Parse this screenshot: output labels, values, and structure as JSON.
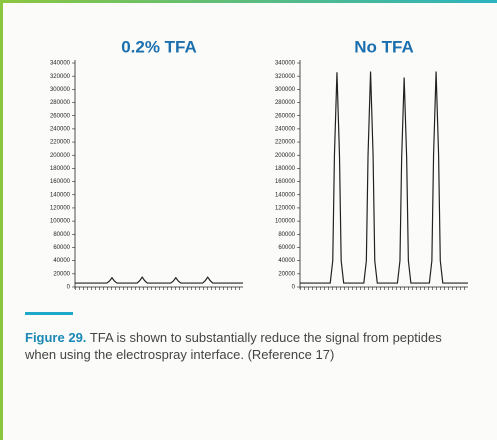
{
  "chart_data": [
    {
      "type": "line",
      "title": "0.2% TFA",
      "color": "#222222",
      "x": [
        0,
        19,
        20.5,
        22,
        23.5,
        25,
        37,
        38.5,
        40,
        41.5,
        43,
        57,
        58.5,
        60,
        61.5,
        63,
        76,
        77.5,
        79,
        80.5,
        82,
        100
      ],
      "values": [
        6000,
        6000,
        9000,
        14000,
        9000,
        6000,
        6000,
        9500,
        15000,
        9500,
        6000,
        6000,
        9000,
        14000,
        9000,
        6000,
        6000,
        9500,
        15000,
        9500,
        6000,
        6000
      ],
      "ylim": [
        0,
        340000
      ],
      "yticks": [
        0,
        20000,
        40000,
        60000,
        80000,
        100000,
        120000,
        140000,
        160000,
        180000,
        200000,
        220000,
        240000,
        260000,
        280000,
        300000,
        320000,
        340000
      ]
    },
    {
      "type": "line",
      "title": "No TFA",
      "color": "#222222",
      "x": [
        0,
        18,
        19.5,
        20.5,
        22,
        23.5,
        24.5,
        26,
        38,
        39.5,
        40.5,
        42,
        43.5,
        44.5,
        46,
        58,
        59.5,
        60.5,
        62,
        63.5,
        64.5,
        66,
        77,
        78.5,
        79.5,
        81,
        82.5,
        83.5,
        85,
        100
      ],
      "values": [
        6000,
        6000,
        40000,
        200000,
        326000,
        200000,
        40000,
        6000,
        6000,
        40000,
        200000,
        327000,
        200000,
        40000,
        6000,
        6000,
        40000,
        195000,
        318000,
        195000,
        40000,
        6000,
        6000,
        40000,
        200000,
        327000,
        200000,
        40000,
        6000,
        6000
      ],
      "ylim": [
        0,
        340000
      ],
      "yticks": [
        0,
        20000,
        40000,
        60000,
        80000,
        100000,
        120000,
        140000,
        160000,
        180000,
        200000,
        220000,
        240000,
        260000,
        280000,
        300000,
        320000,
        340000
      ]
    }
  ],
  "caption": {
    "label": "Figure 29.",
    "text": "TFA is shown to substantially reduce the signal from peptides when using the electrospray interface. (Reference 17)"
  }
}
